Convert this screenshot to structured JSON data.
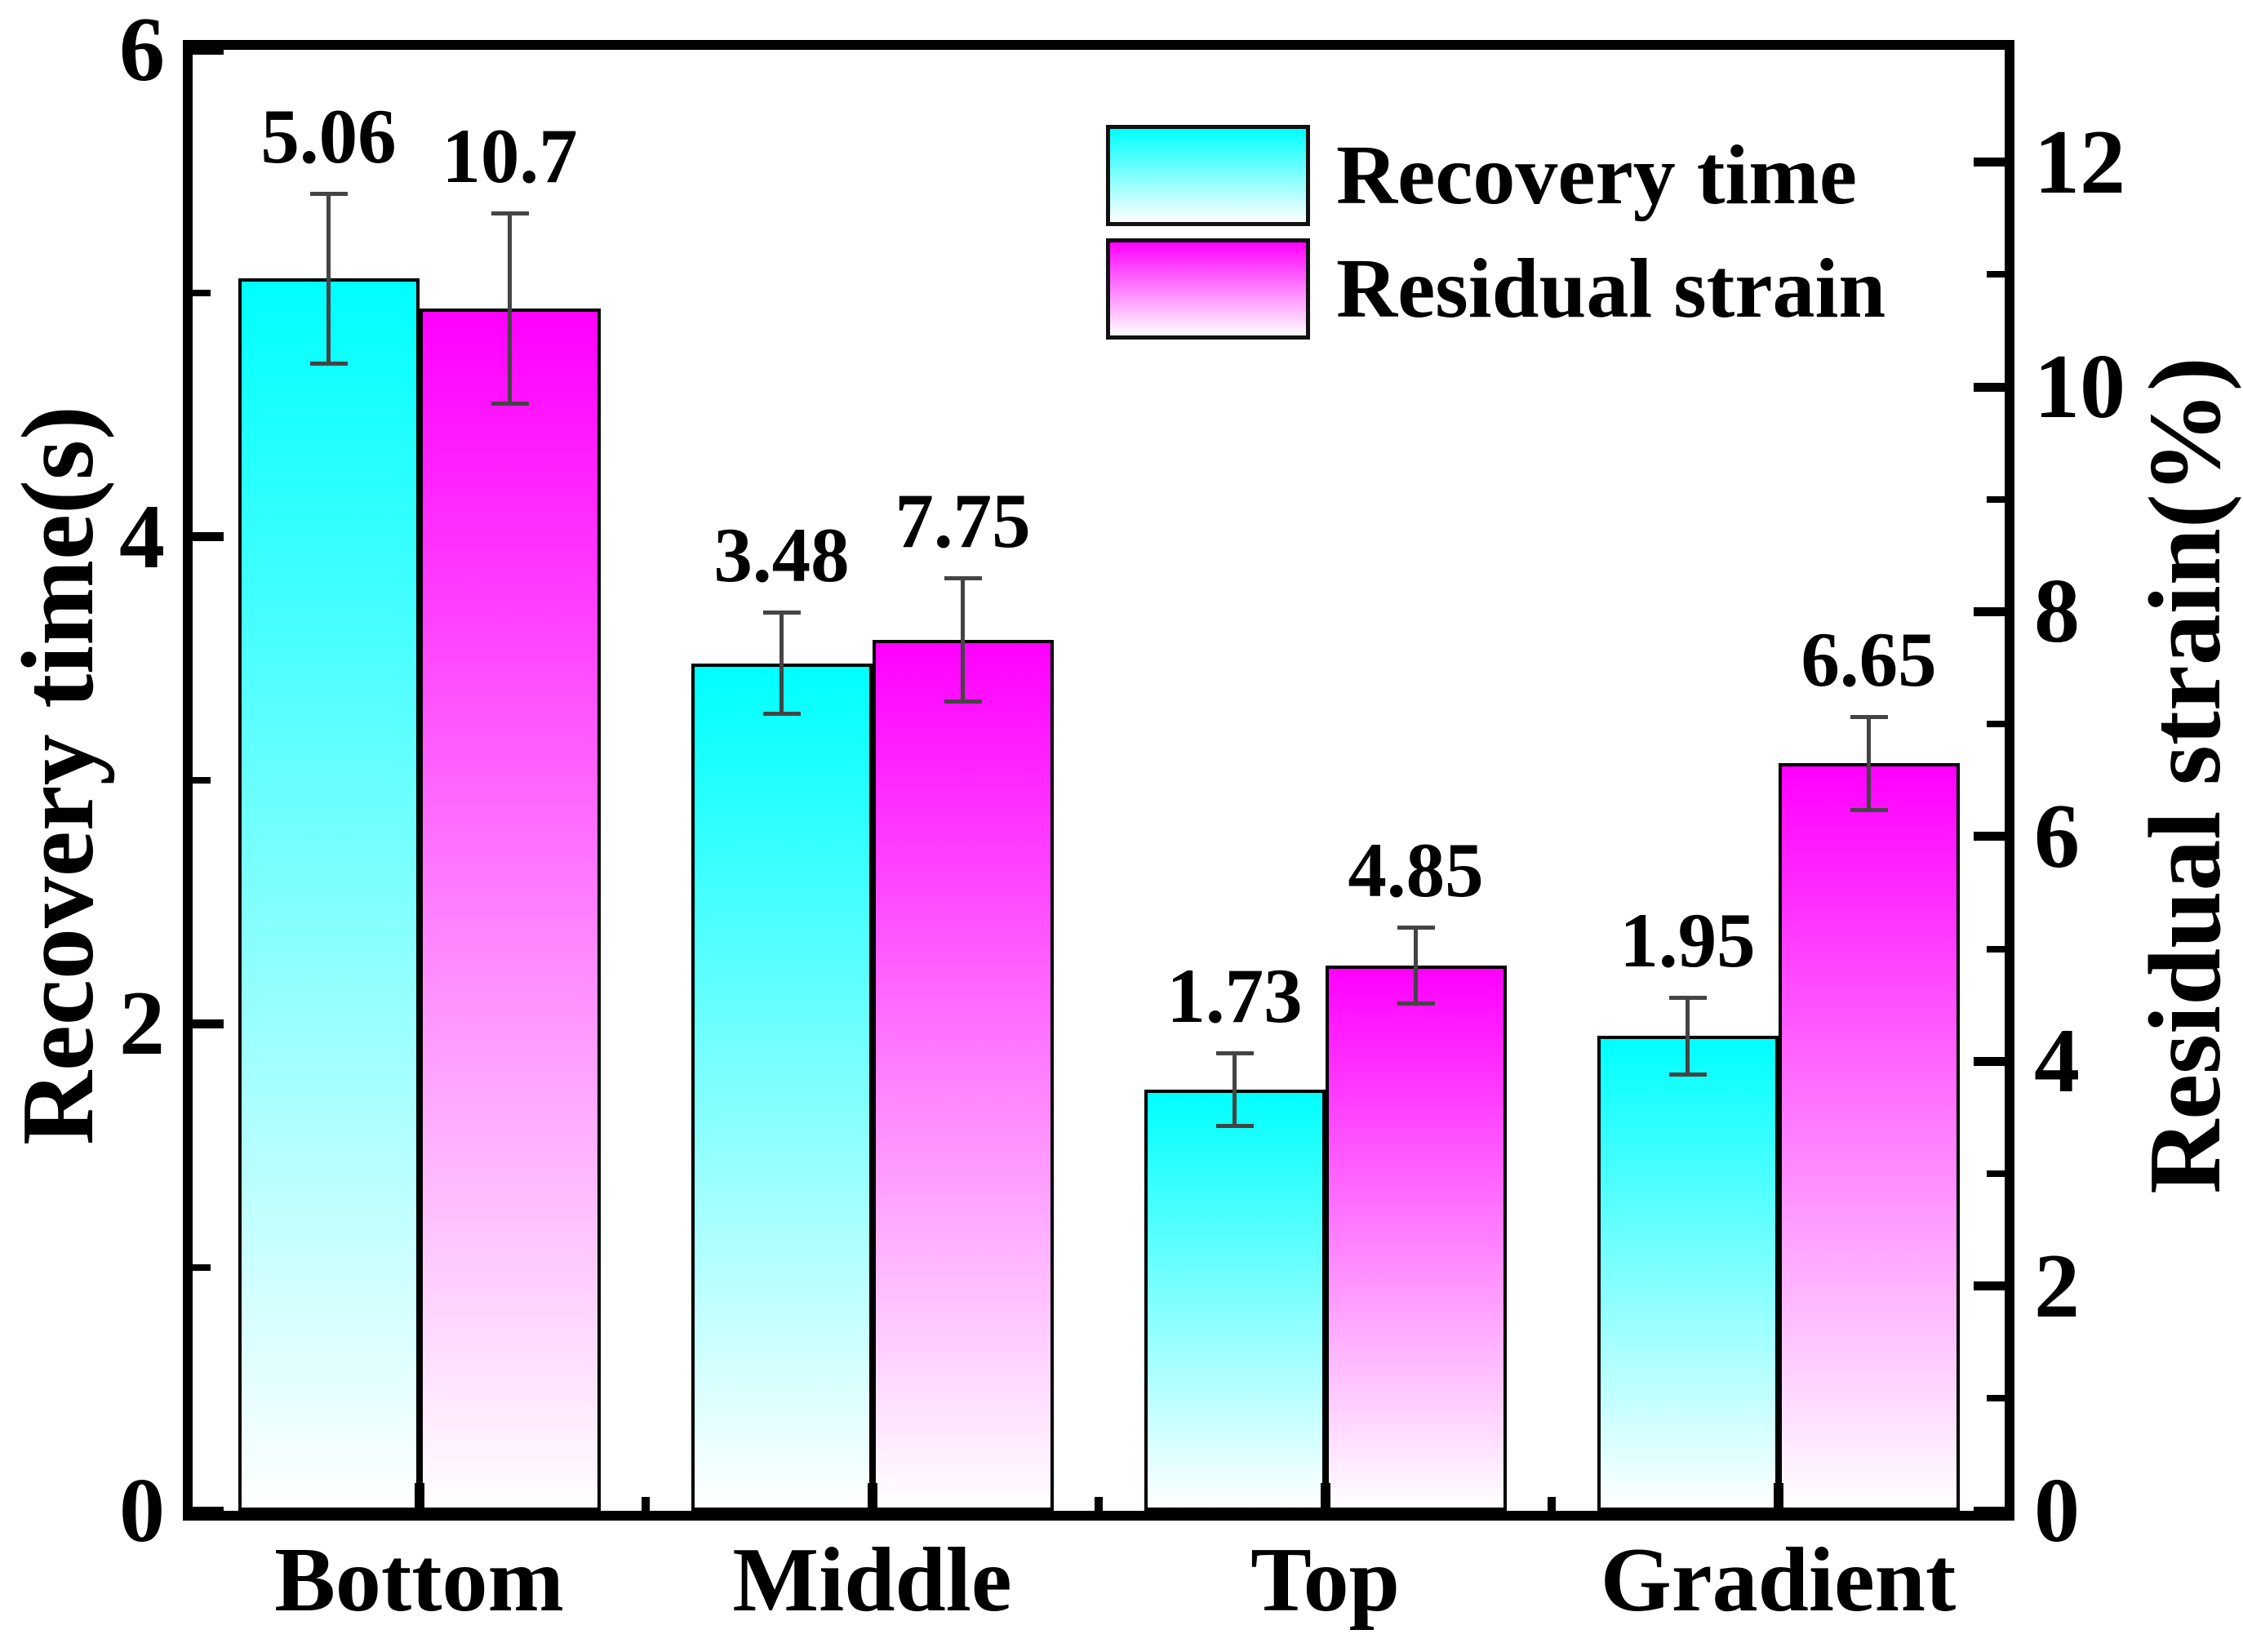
{
  "chart_data": {
    "type": "bar",
    "title": "",
    "categories": [
      "Bottom",
      "Middle",
      "Top",
      "Gradient"
    ],
    "series": [
      {
        "name": "Recovery time",
        "axis": "left",
        "color": "#00ffff",
        "values": [
          5.06,
          3.48,
          1.73,
          1.95
        ],
        "errors": [
          0.35,
          0.21,
          0.15,
          0.16
        ],
        "data_labels": [
          "5.06",
          "3.48",
          "1.73",
          "1.95"
        ]
      },
      {
        "name": "Residual strain",
        "axis": "right",
        "color": "#ff00ff",
        "values": [
          10.7,
          7.75,
          4.85,
          6.65
        ],
        "errors": [
          0.85,
          0.55,
          0.34,
          0.42
        ],
        "data_labels": [
          "10.7",
          "7.75",
          "4.85",
          "6.65"
        ]
      }
    ],
    "left_axis": {
      "label": "Recovery time(s)",
      "min": 0,
      "max": 6,
      "major_ticks": [
        0,
        2,
        4,
        6
      ],
      "minor_ticks": [
        1,
        3,
        5
      ],
      "tick_labels": [
        "0",
        "2",
        "4",
        "6"
      ]
    },
    "right_axis": {
      "label": "Residual strain(%)",
      "min": 0,
      "max": 13,
      "major_ticks": [
        0,
        2,
        4,
        6,
        8,
        10,
        12
      ],
      "minor_ticks": [
        1,
        3,
        5,
        7,
        9,
        11
      ],
      "tick_labels": [
        "0",
        "2",
        "4",
        "6",
        "8",
        "10",
        "12"
      ]
    },
    "legend": {
      "position": "upper-right",
      "items": [
        {
          "label": "Recovery time",
          "color": "#00ffff"
        },
        {
          "label": "Residual strain",
          "color": "#ff00ff"
        }
      ]
    },
    "grid": false,
    "bar_outline_color": "#000000",
    "error_bar_color": "#444444",
    "gradient_fade_to": "#ffffff",
    "frame_color": "#000000"
  }
}
